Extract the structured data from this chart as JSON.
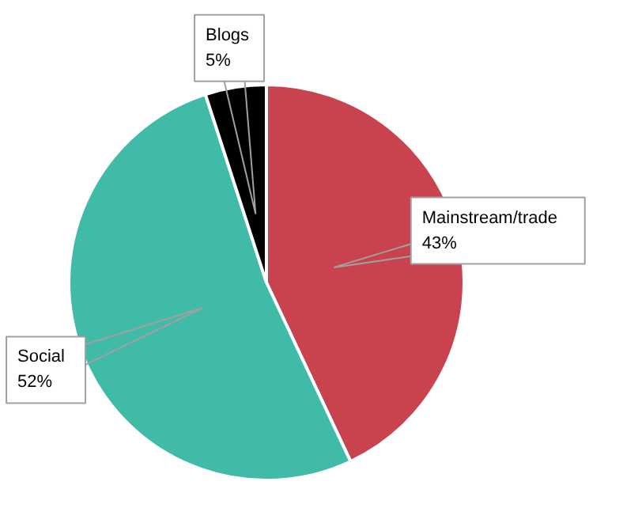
{
  "chart_data": {
    "type": "pie",
    "categories": [
      "Mainstream/trade",
      "Social",
      "Blogs"
    ],
    "values": [
      43,
      52,
      5
    ],
    "colors": [
      "#c9434f",
      "#40bba8",
      "#000000"
    ],
    "value_labels": [
      "43%",
      "52%",
      "5%"
    ]
  }
}
